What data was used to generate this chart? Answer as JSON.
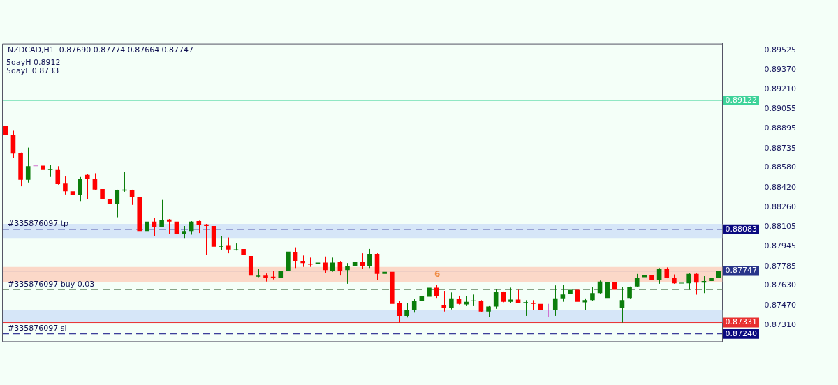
{
  "chart_data": {
    "type": "candlestick",
    "title": "NZDCAD,H1  0.87690 0.87774 0.87664 0.87747",
    "annotations": [
      "5dayH 0.8912",
      "5dayL 0.8733",
      {
        "text": "#335876097 tp",
        "y": 0.88083
      },
      {
        "text": "#335876097 buy 0.03",
        "y": 0.87596
      },
      {
        "text": "#335876097 sl",
        "y": 0.8724
      }
    ],
    "categories": [
      null,
      null,
      null,
      null,
      null,
      null,
      null,
      null,
      null,
      null,
      null,
      null,
      null,
      null,
      null,
      null,
      null,
      null,
      null,
      null,
      null,
      null,
      null,
      null,
      null,
      null,
      null,
      null,
      null,
      null,
      null,
      null,
      null,
      null,
      null,
      null,
      null,
      null,
      null,
      null,
      null,
      null,
      null,
      null,
      null,
      null,
      null,
      null,
      null,
      null,
      null,
      null,
      null,
      null,
      null,
      null,
      null,
      null,
      null,
      null,
      null,
      null,
      null,
      null,
      null,
      null,
      null,
      null,
      null,
      null,
      null,
      null,
      null,
      null,
      null,
      null,
      null,
      null,
      null,
      null,
      null,
      null,
      null,
      null,
      null,
      null,
      null,
      null,
      null,
      null,
      null,
      null,
      null,
      null,
      null,
      null,
      null
    ],
    "ohlc": [
      [
        0.88917,
        0.89122,
        0.88821,
        0.88842
      ],
      [
        0.88846,
        0.88878,
        0.88658,
        0.88693
      ],
      [
        0.88698,
        0.88702,
        0.8843,
        0.88482
      ],
      [
        0.88482,
        0.88742,
        0.8846,
        0.88592
      ],
      [
        0.88592,
        0.88671,
        0.88412,
        0.88592
      ],
      [
        0.88597,
        0.88693,
        0.88548,
        0.88562
      ],
      [
        0.88562,
        0.88601,
        0.88505,
        0.88571
      ],
      [
        0.88562,
        0.88592,
        0.88443,
        0.88448
      ],
      [
        0.88452,
        0.88509,
        0.88364,
        0.8839
      ],
      [
        0.8839,
        0.88412,
        0.88259,
        0.88359
      ],
      [
        0.88359,
        0.88505,
        0.88311,
        0.88491
      ],
      [
        0.88522,
        0.88531,
        0.88329,
        0.88491
      ],
      [
        0.88491,
        0.88535,
        0.884,
        0.88404
      ],
      [
        0.88408,
        0.8843,
        0.8832,
        0.88329
      ],
      [
        0.88329,
        0.88404,
        0.88267,
        0.88289
      ],
      [
        0.88289,
        0.88403,
        0.8818,
        0.88399
      ],
      [
        0.88395,
        0.88544,
        0.88386,
        0.88404
      ],
      [
        0.88399,
        0.88403,
        0.8828,
        0.88342
      ],
      [
        0.88342,
        0.88346,
        0.88057,
        0.8807
      ],
      [
        0.8807,
        0.88206,
        0.88066,
        0.88145
      ],
      [
        0.88145,
        0.88175,
        0.88026,
        0.88105
      ],
      [
        0.88105,
        0.8832,
        0.88101,
        0.88158
      ],
      [
        0.88162,
        0.88166,
        0.88044,
        0.88145
      ],
      [
        0.88145,
        0.8818,
        0.88035,
        0.88044
      ],
      [
        0.88044,
        0.8811,
        0.88013,
        0.8807
      ],
      [
        0.8807,
        0.88149,
        0.8804,
        0.88145
      ],
      [
        0.88149,
        0.88153,
        0.88053,
        0.88118
      ],
      [
        0.88123,
        0.88127,
        0.87877,
        0.8811
      ],
      [
        0.8811,
        0.88127,
        0.87907,
        0.87943
      ],
      [
        0.87943,
        0.8803,
        0.87916,
        0.87951
      ],
      [
        0.87956,
        0.88017,
        0.8789,
        0.87921
      ],
      [
        0.87916,
        0.87969,
        0.87912,
        0.87921
      ],
      [
        0.87925,
        0.87934,
        0.87855,
        0.87877
      ],
      [
        0.87868,
        0.8789,
        0.87692,
        0.8771
      ],
      [
        0.87701,
        0.87763,
        0.87697,
        0.8771
      ],
      [
        0.8771,
        0.87727,
        0.87662,
        0.87692
      ],
      [
        0.87701,
        0.87749,
        0.87679,
        0.87688
      ],
      [
        0.87688,
        0.87749,
        0.87662,
        0.87745
      ],
      [
        0.87745,
        0.87912,
        0.87727,
        0.87903
      ],
      [
        0.87899,
        0.87938,
        0.87771,
        0.87829
      ],
      [
        0.87829,
        0.87872,
        0.8778,
        0.87811
      ],
      [
        0.87806,
        0.87855,
        0.8778,
        0.87798
      ],
      [
        0.87802,
        0.87846,
        0.87789,
        0.87815
      ],
      [
        0.87815,
        0.87864,
        0.87732,
        0.87754
      ],
      [
        0.87745,
        0.87855,
        0.87741,
        0.87815
      ],
      [
        0.87824,
        0.87828,
        0.8771,
        0.87745
      ],
      [
        0.87754,
        0.87811,
        0.87644,
        0.87789
      ],
      [
        0.87789,
        0.87837,
        0.87723,
        0.87824
      ],
      [
        0.87824,
        0.8789,
        0.87767,
        0.87789
      ],
      [
        0.87789,
        0.87925,
        0.87771,
        0.87885
      ],
      [
        0.87885,
        0.8789,
        0.87675,
        0.87723
      ],
      [
        0.87723,
        0.87793,
        0.87596,
        0.8774
      ],
      [
        0.8774,
        0.87758,
        0.87464,
        0.87482
      ],
      [
        0.87486,
        0.87508,
        0.87331,
        0.87385
      ],
      [
        0.87385,
        0.87486,
        0.87372,
        0.87433
      ],
      [
        0.87433,
        0.87521,
        0.87411,
        0.87504
      ],
      [
        0.87504,
        0.876,
        0.87477,
        0.87543
      ],
      [
        0.87539,
        0.87631,
        0.8749,
        0.87613
      ],
      [
        0.87613,
        0.87635,
        0.8753,
        0.87548
      ],
      [
        0.87473,
        0.87587,
        0.8742,
        0.87451
      ],
      [
        0.87446,
        0.87574,
        0.87437,
        0.87526
      ],
      [
        0.87521,
        0.87548,
        0.87477,
        0.87482
      ],
      [
        0.87477,
        0.87543,
        0.87464,
        0.87499
      ],
      [
        0.87504,
        0.87557,
        0.87464,
        0.87504
      ],
      [
        0.87508,
        0.87512,
        0.87416,
        0.8742
      ],
      [
        0.8742,
        0.87464,
        0.87376,
        0.8746
      ],
      [
        0.8746,
        0.876,
        0.87442,
        0.87578
      ],
      [
        0.87578,
        0.87582,
        0.87495,
        0.87499
      ],
      [
        0.87499,
        0.87613,
        0.87486,
        0.87517
      ],
      [
        0.87517,
        0.87596,
        0.87486,
        0.8749
      ],
      [
        0.8749,
        0.87512,
        0.87385,
        0.8749
      ],
      [
        0.8749,
        0.87512,
        0.87433,
        0.87482
      ],
      [
        0.87482,
        0.87526,
        0.87424,
        0.87429
      ],
      [
        0.87446,
        0.87482,
        0.87376,
        0.87446
      ],
      [
        0.87433,
        0.87631,
        0.87385,
        0.87526
      ],
      [
        0.87526,
        0.87635,
        0.87499,
        0.87557
      ],
      [
        0.87561,
        0.87644,
        0.87517,
        0.87596
      ],
      [
        0.87596,
        0.87618,
        0.87451,
        0.87499
      ],
      [
        0.87495,
        0.87526,
        0.87433,
        0.87512
      ],
      [
        0.87512,
        0.87618,
        0.87508,
        0.87569
      ],
      [
        0.87569,
        0.8767,
        0.87565,
        0.87662
      ],
      [
        0.8753,
        0.87679,
        0.87477,
        0.87657
      ],
      [
        0.87657,
        0.87662,
        0.87591,
        0.87596
      ],
      [
        0.87446,
        0.87618,
        0.87331,
        0.87512
      ],
      [
        0.8753,
        0.87622,
        0.87526,
        0.87618
      ],
      [
        0.87622,
        0.87723,
        0.87618,
        0.87692
      ],
      [
        0.87697,
        0.87754,
        0.87684,
        0.87714
      ],
      [
        0.87714,
        0.87745,
        0.8767,
        0.87675
      ],
      [
        0.87675,
        0.87771,
        0.87644,
        0.87767
      ],
      [
        0.87763,
        0.87776,
        0.87688,
        0.87692
      ],
      [
        0.87692,
        0.87719,
        0.87644,
        0.87648
      ],
      [
        0.87646,
        0.87684,
        0.87622,
        0.87648
      ],
      [
        0.87648,
        0.87727,
        0.87596,
        0.87723
      ],
      [
        0.87723,
        0.87727,
        0.87556,
        0.87653
      ],
      [
        0.87653,
        0.87705,
        0.87569,
        0.87666
      ],
      [
        0.87666,
        0.87705,
        0.87613,
        0.87688
      ],
      [
        0.8769,
        0.87774,
        0.87664,
        0.87747
      ]
    ],
    "colors": [
      "#ff0000",
      "#ff0000",
      "#ff0000",
      "#0b7e0b",
      "#d070d0",
      "#ff0000",
      "#0b7e0b",
      "#ff0000",
      "#ff0000",
      "#ff0000",
      "#0b7e0b",
      "#ff0000",
      "#ff0000",
      "#ff0000",
      "#ff0000",
      "#0b7e0b",
      "#0b7e0b",
      "#ff0000",
      "#ff0000",
      "#0b7e0b",
      "#ff0000",
      "#0b7e0b",
      "#ff0000",
      "#ff0000",
      "#0b7e0b",
      "#0b7e0b",
      "#ff0000",
      "#ff0000",
      "#ff0000",
      "#0b7e0b",
      "#ff0000",
      "#0b7e0b",
      "#ff0000",
      "#ff0000",
      "#0b7e0b",
      "#ff0000",
      "#ff0000",
      "#0b7e0b",
      "#0b7e0b",
      "#ff0000",
      "#ff0000",
      "#ff0000",
      "#0b7e0b",
      "#ff0000",
      "#0b7e0b",
      "#ff0000",
      "#0b7e0b",
      "#0b7e0b",
      "#ff0000",
      "#0b7e0b",
      "#ff0000",
      "#0b7e0b",
      "#ff0000",
      "#ff0000",
      "#0b7e0b",
      "#0b7e0b",
      "#0b7e0b",
      "#0b7e0b",
      "#ff0000",
      "#ff0000",
      "#0b7e0b",
      "#ff0000",
      "#0b7e0b",
      "#0b7e0b",
      "#ff0000",
      "#0b7e0b",
      "#0b7e0b",
      "#ff0000",
      "#0b7e0b",
      "#ff0000",
      "#0b7e0b",
      "#ff0000",
      "#ff0000",
      "#d070d0",
      "#0b7e0b",
      "#0b7e0b",
      "#0b7e0b",
      "#ff0000",
      "#0b7e0b",
      "#0b7e0b",
      "#0b7e0b",
      "#0b7e0b",
      "#ff0000",
      "#0b7e0b",
      "#0b7e0b",
      "#0b7e0b",
      "#0b7e0b",
      "#ff0000",
      "#0b7e0b",
      "#ff0000",
      "#ff0000",
      "#0b7e0b",
      "#0b7e0b",
      "#ff0000",
      "#0b7e0b",
      "#0b7e0b",
      "#0b7e0b"
    ],
    "ylim": [
      0.8718,
      0.8958
    ],
    "yticks": [
      0.89525,
      {
        "value": 0.8937,
        "label": "0.89370"
      },
      {
        "value": 0.8921,
        "label": "0.89210"
      },
      0.89055,
      0.88895,
      0.88735,
      {
        "value": 0.8858,
        "label": "0.88580"
      },
      {
        "value": 0.8842,
        "label": "0.88420"
      },
      {
        "value": 0.8826,
        "label": "0.88260"
      },
      0.88105,
      0.87945,
      0.87785,
      {
        "value": 0.8763,
        "label": "0.87630"
      },
      {
        "value": 0.8747,
        "label": "0.87470"
      },
      {
        "value": 0.8731,
        "label": "0.87310"
      }
    ],
    "tick_labels": "y",
    "ref_lines": [
      {
        "axis": "y",
        "value": 0.89122,
        "label": "0.89122",
        "color": "#3ed39a"
      },
      {
        "axis": "y",
        "value": 0.88083,
        "label": "0.88083",
        "color": "#0a0a80",
        "line_style": "dashed"
      },
      {
        "axis": "y",
        "value": 0.87747,
        "label": "0.87747",
        "color": "#28358a"
      },
      {
        "axis": "y",
        "value": 0.87596,
        "color": "#7c9c7c",
        "line_style": "dashed"
      },
      {
        "axis": "y",
        "value": 0.87331,
        "label": "0.87331",
        "color": "#e83030"
      },
      {
        "axis": "y",
        "value": 0.8724,
        "label": "0.87240",
        "color": "#0a0a80",
        "line_style": "dashed"
      }
    ],
    "bands": [
      {
        "axis": "y",
        "from": 0.88013,
        "to": 0.88127,
        "color": "#d6e6f8"
      },
      {
        "axis": "y",
        "from": 0.87657,
        "to": 0.8778,
        "color": "#fbd8c8",
        "label": "6"
      },
      {
        "axis": "y",
        "from": 0.87331,
        "to": 0.87433,
        "color": "#d6e6f8"
      }
    ]
  }
}
